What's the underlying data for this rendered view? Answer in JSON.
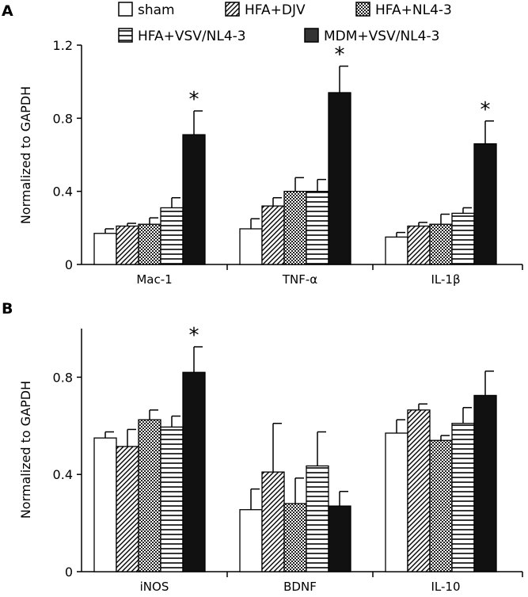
{
  "legend": {
    "items": [
      {
        "label": "sham",
        "pattern": "white"
      },
      {
        "label": "HFA+DJV",
        "pattern": "diagonal"
      },
      {
        "label": "HFA+NL4-3",
        "pattern": "checker"
      },
      {
        "label": "HFA+VSV/NL4-3",
        "pattern": "horizontal"
      },
      {
        "label": "MDM+VSV/NL4-3",
        "pattern": "solid"
      }
    ]
  },
  "colors": {
    "bar_solid": "#111111",
    "stroke": "#000000",
    "background": "#ffffff"
  },
  "chart_data": [
    {
      "type": "bar",
      "panel": "A",
      "ylabel": "Normalized to GAPDH",
      "ylim": [
        0,
        1.2
      ],
      "yticks": [
        0,
        0.4,
        0.8,
        1.2
      ],
      "ytick_labels": [
        "0",
        "0.4",
        "0.8",
        "1.2"
      ],
      "categories": [
        "Mac-1",
        "TNF-α",
        "IL-1β"
      ],
      "series": [
        {
          "name": "sham",
          "values": [
            0.17,
            0.195,
            0.15
          ],
          "errors": [
            0.025,
            0.055,
            0.025
          ],
          "significant": [
            false,
            false,
            false
          ]
        },
        {
          "name": "HFA+DJV",
          "values": [
            0.21,
            0.32,
            0.21
          ],
          "errors": [
            0.015,
            0.045,
            0.02
          ],
          "significant": [
            false,
            false,
            false
          ]
        },
        {
          "name": "HFA+NL4-3",
          "values": [
            0.22,
            0.4,
            0.22
          ],
          "errors": [
            0.035,
            0.075,
            0.055
          ],
          "significant": [
            false,
            false,
            false
          ]
        },
        {
          "name": "HFA+VSV/NL4-3",
          "values": [
            0.31,
            0.4,
            0.28
          ],
          "errors": [
            0.055,
            0.065,
            0.03
          ],
          "significant": [
            false,
            false,
            false
          ]
        },
        {
          "name": "MDM+VSV/NL4-3",
          "values": [
            0.71,
            0.94,
            0.66
          ],
          "errors": [
            0.13,
            0.145,
            0.125
          ],
          "significant": [
            true,
            true,
            true
          ]
        }
      ]
    },
    {
      "type": "bar",
      "panel": "B",
      "ylabel": "Normalized to GAPDH",
      "ylim": [
        0,
        1.0
      ],
      "yticks": [
        0,
        0.4,
        0.8
      ],
      "ytick_labels": [
        "0",
        "0.4",
        "0.8"
      ],
      "categories": [
        "iNOS",
        "BDNF",
        "IL-10"
      ],
      "series": [
        {
          "name": "sham",
          "values": [
            0.55,
            0.255,
            0.57
          ],
          "errors": [
            0.025,
            0.085,
            0.055
          ],
          "significant": [
            false,
            false,
            false
          ]
        },
        {
          "name": "HFA+DJV",
          "values": [
            0.515,
            0.41,
            0.665
          ],
          "errors": [
            0.07,
            0.2,
            0.025
          ],
          "significant": [
            false,
            false,
            false
          ]
        },
        {
          "name": "HFA+NL4-3",
          "values": [
            0.625,
            0.28,
            0.54
          ],
          "errors": [
            0.04,
            0.105,
            0.02
          ],
          "significant": [
            false,
            false,
            false
          ]
        },
        {
          "name": "HFA+VSV/NL4-3",
          "values": [
            0.595,
            0.435,
            0.61
          ],
          "errors": [
            0.045,
            0.14,
            0.065
          ],
          "significant": [
            false,
            false,
            false
          ]
        },
        {
          "name": "MDM+VSV/NL4-3",
          "values": [
            0.82,
            0.27,
            0.725
          ],
          "errors": [
            0.105,
            0.06,
            0.1
          ],
          "significant": [
            true,
            false,
            false
          ]
        }
      ]
    }
  ]
}
